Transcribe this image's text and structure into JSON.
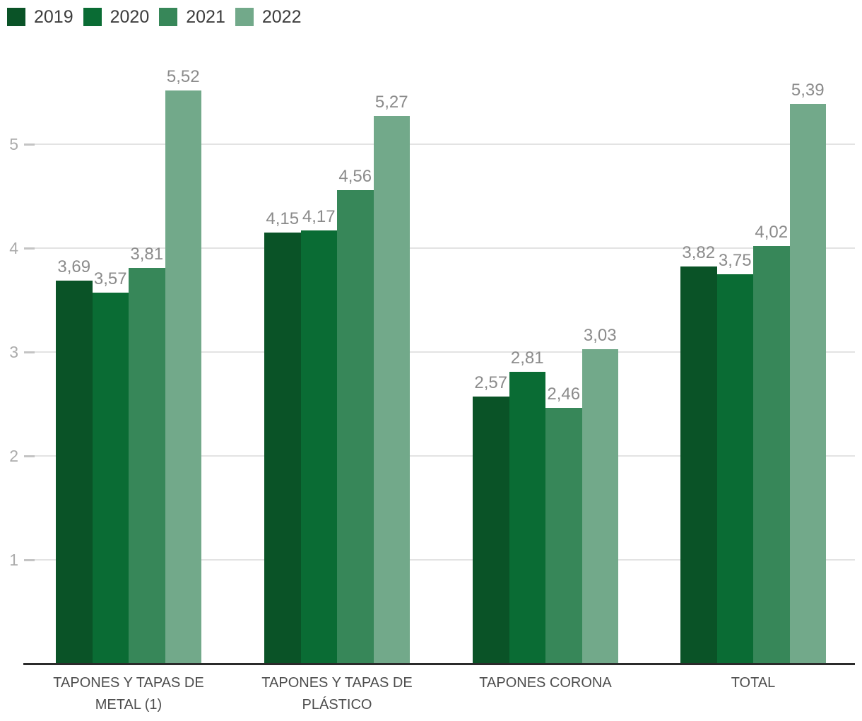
{
  "chart_data": {
    "type": "bar",
    "title": "",
    "categories": [
      "TAPONES Y TAPAS DE METAL (1)",
      "TAPONES Y TAPAS DE PLÁSTICO",
      "TAPONES CORONA",
      "TOTAL"
    ],
    "category_label_lines": [
      [
        "TAPONES Y TAPAS DE",
        "METAL (1)"
      ],
      [
        "TAPONES Y TAPAS DE",
        "PLÁSTICO"
      ],
      [
        "TAPONES CORONA"
      ],
      [
        "TOTAL"
      ]
    ],
    "series": [
      {
        "name": "2019",
        "color": "#0a5327",
        "values": [
          3.69,
          4.15,
          2.57,
          3.82
        ],
        "labels": [
          "3,69",
          "4,15",
          "2,57",
          "3,82"
        ]
      },
      {
        "name": "2020",
        "color": "#0a6c34",
        "values": [
          3.57,
          4.17,
          2.81,
          3.75
        ],
        "labels": [
          "3,57",
          "4,17",
          "2,81",
          "3,75"
        ]
      },
      {
        "name": "2021",
        "color": "#378759",
        "values": [
          3.81,
          4.56,
          2.46,
          4.02
        ],
        "labels": [
          "3,81",
          "4,56",
          "2,46",
          "4,02"
        ]
      },
      {
        "name": "2022",
        "color": "#72a98a",
        "values": [
          5.52,
          5.27,
          3.03,
          5.39
        ],
        "labels": [
          "5,52",
          "5,27",
          "3,03",
          "5,39"
        ]
      }
    ],
    "y_ticks": [
      1,
      2,
      3,
      4,
      5
    ],
    "ylim": [
      0,
      5.8
    ],
    "grid": true,
    "legend_position": "top-left",
    "decimal_separator": ","
  },
  "style": {
    "background": "#ffffff",
    "gridline_color": "#e3e3e3",
    "tick_color": "#c4c4c4",
    "axis_line_color": "#2b2b2b",
    "value_label_color": "#8b8b8b",
    "y_tick_label_color": "#ababab",
    "category_label_color": "#4d4d4d",
    "legend_text_color": "#3d3d3d"
  }
}
